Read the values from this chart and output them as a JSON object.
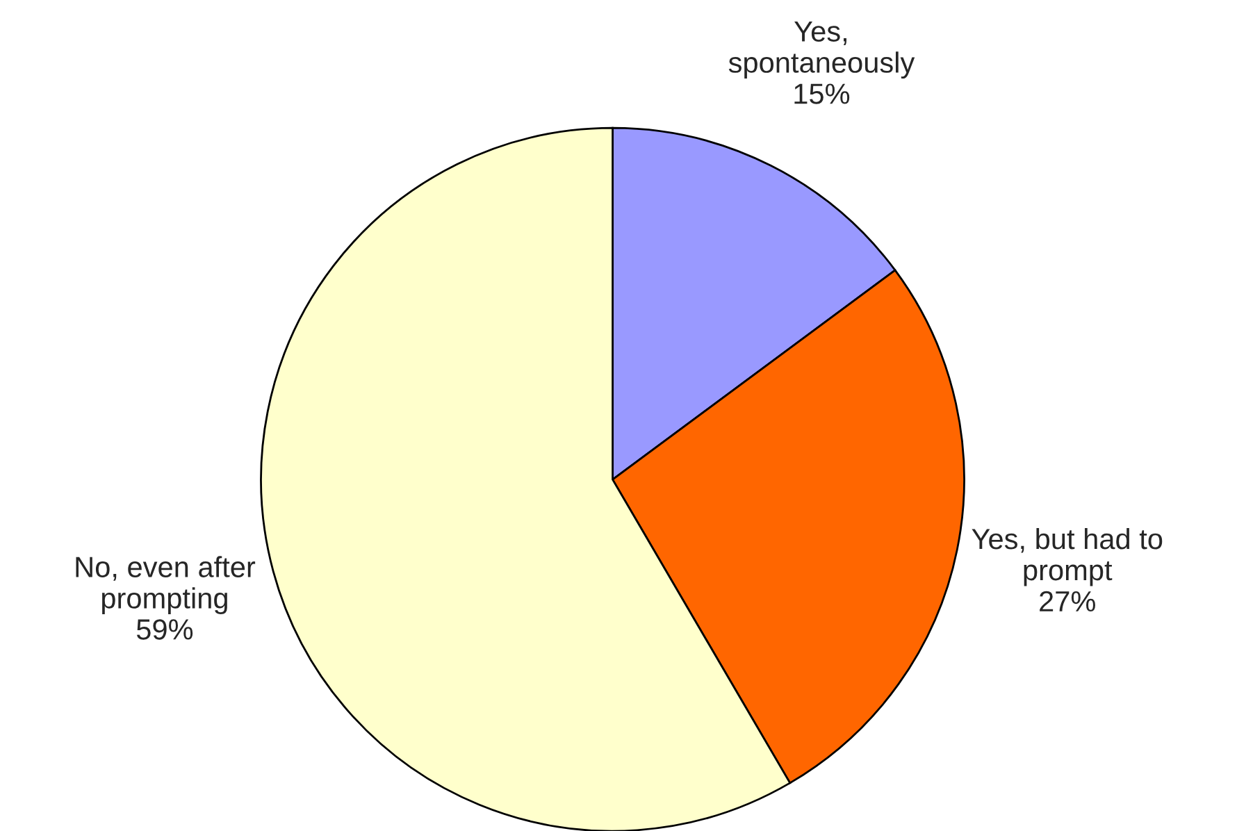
{
  "chart_data": {
    "type": "pie",
    "categories": [
      "Yes,\nspontaneously",
      "Yes, but had to\nprompt",
      "No, even after\nprompting"
    ],
    "values": [
      15,
      27,
      59
    ],
    "value_labels": [
      "15%",
      "27%",
      "59%"
    ],
    "colors": [
      "#9999ff",
      "#ff6600",
      "#ffffcc"
    ],
    "legend": false
  }
}
